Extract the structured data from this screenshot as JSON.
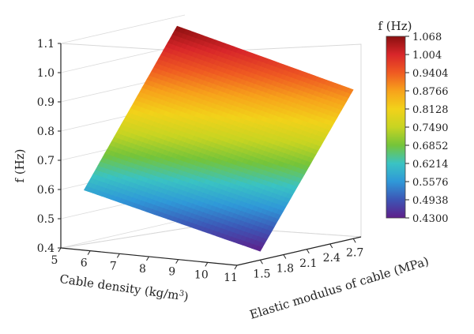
{
  "chart_data": {
    "type": "surface3d",
    "z_title": "f (Hz)",
    "x_title": "Cable density (kg/m",
    "x_title_sup": "3",
    "x_title_end": ")",
    "y_title": "Elastic modulus of cable (MPa)",
    "colorbar_title": "f (Hz)",
    "x_ticks": [
      "5",
      "6",
      "7",
      "8",
      "9",
      "10",
      "11"
    ],
    "y_ticks": [
      "1.5",
      "1.8",
      "2.1",
      "2.4",
      "2.7"
    ],
    "z_ticks": [
      "0.4",
      "0.5",
      "0.6",
      "0.7",
      "0.8",
      "0.9",
      "1.0",
      "1.1"
    ],
    "colorbar_ticks": [
      "1.068",
      "1.004",
      "0.9404",
      "0.8766",
      "0.8128",
      "0.7490",
      "0.6852",
      "0.6214",
      "0.5576",
      "0.4938",
      "0.4300"
    ],
    "xlim": [
      5,
      11
    ],
    "ylim": [
      1.2,
      2.8
    ],
    "zlim": [
      0.4,
      1.1
    ],
    "surface_corners": [
      {
        "x": 5,
        "y": 1.5,
        "z": 0.58
      },
      {
        "x": 11,
        "y": 1.5,
        "z": 0.43
      },
      {
        "x": 11,
        "y": 2.7,
        "z": 0.91
      },
      {
        "x": 5,
        "y": 2.7,
        "z": 1.068
      }
    ],
    "colorscale": [
      "#5e1f8a",
      "#3d55b5",
      "#2f98d8",
      "#3ac3c3",
      "#74c43a",
      "#c7d422",
      "#f2d21a",
      "#f7a21b",
      "#ef5a22",
      "#d8262a",
      "#8b1010"
    ]
  }
}
